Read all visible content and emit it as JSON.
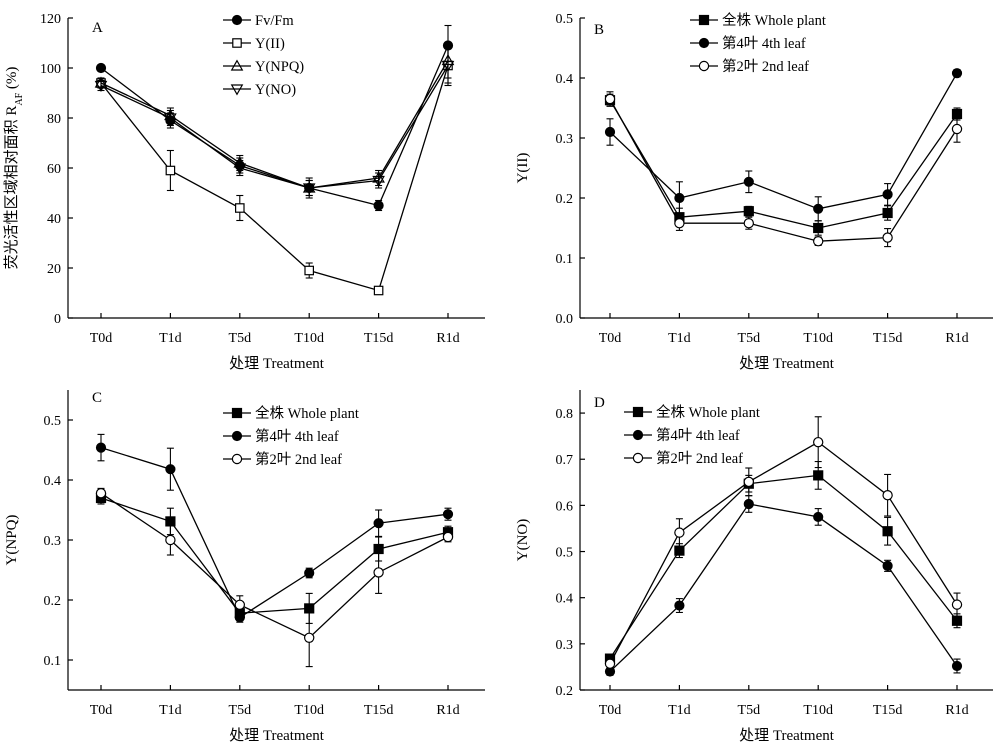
{
  "chart_data": [
    {
      "panel": "A",
      "type": "line",
      "ylabel_main": "荧光活性区域相对面积 R",
      "ylabel_sub": "AF",
      "ylabel_suffix": " (%)",
      "xlabel": "处理 Treatment",
      "categories": [
        "T0d",
        "T1d",
        "T5d",
        "T10d",
        "T15d",
        "R1d"
      ],
      "ylim": [
        0,
        120
      ],
      "yticks": [
        0,
        20,
        40,
        60,
        80,
        100,
        120
      ],
      "ytick_decimals": 0,
      "legend_position": "top-left",
      "series": [
        {
          "name": "Fv/Fm",
          "marker": "circle-filled",
          "values": [
            100,
            79,
            61,
            52,
            45,
            109
          ],
          "errors": [
            0,
            3,
            3,
            3,
            2,
            8
          ]
        },
        {
          "name": "Y(II)",
          "marker": "square-open",
          "values": [
            94,
            59,
            44,
            19,
            11,
            101
          ],
          "errors": [
            2,
            8,
            5,
            3,
            1,
            8
          ]
        },
        {
          "name": "Y(NPQ)",
          "marker": "triangle-up-open",
          "values": [
            94,
            81,
            62,
            52,
            56,
            103
          ],
          "errors": [
            2,
            3,
            3,
            4,
            3,
            7
          ]
        },
        {
          "name": "Y(NO)",
          "marker": "triangle-down-open",
          "values": [
            93,
            80,
            60,
            52,
            55,
            101
          ],
          "errors": [
            2,
            3,
            3,
            3,
            3,
            7
          ]
        }
      ]
    },
    {
      "panel": "B",
      "type": "line",
      "ylabel_main": "Y(II)",
      "xlabel": "处理 Treatment",
      "categories": [
        "T0d",
        "T1d",
        "T5d",
        "T10d",
        "T15d",
        "R1d"
      ],
      "ylim": [
        0,
        0.5
      ],
      "yticks": [
        0,
        0.1,
        0.2,
        0.3,
        0.4,
        0.5
      ],
      "ytick_decimals": 1,
      "legend_position": "top-center",
      "series": [
        {
          "name": "全株 Whole plant",
          "marker": "square-filled",
          "values": [
            0.363,
            0.168,
            0.178,
            0.15,
            0.175,
            0.34
          ],
          "errors": [
            0.01,
            0.015,
            0.008,
            0.012,
            0.012,
            0.01
          ]
        },
        {
          "name": "第4叶 4th leaf",
          "marker": "circle-filled",
          "values": [
            0.31,
            0.2,
            0.227,
            0.182,
            0.206,
            0.408
          ],
          "errors": [
            0.022,
            0.027,
            0.018,
            0.02,
            0.018,
            0.006
          ]
        },
        {
          "name": "第2叶 2nd leaf",
          "marker": "circle-open",
          "values": [
            0.365,
            0.158,
            0.158,
            0.128,
            0.134,
            0.315
          ],
          "errors": [
            0.012,
            0.012,
            0.01,
            0.007,
            0.015,
            0.022
          ]
        }
      ]
    },
    {
      "panel": "C",
      "type": "line",
      "ylabel_main": "Y(NPQ)",
      "xlabel": "处理 Treatment",
      "categories": [
        "T0d",
        "T1d",
        "T5d",
        "T10d",
        "T15d",
        "R1d"
      ],
      "ylim": [
        0.05,
        0.55
      ],
      "yticks": [
        0.1,
        0.2,
        0.3,
        0.4,
        0.5
      ],
      "ytick_decimals": 1,
      "legend_position": "top-center",
      "series": [
        {
          "name": "全株 Whole plant",
          "marker": "square-filled",
          "values": [
            0.37,
            0.331,
            0.178,
            0.186,
            0.285,
            0.313
          ],
          "errors": [
            0.01,
            0.022,
            0.008,
            0.025,
            0.02,
            0.01
          ]
        },
        {
          "name": "第4叶 4th leaf",
          "marker": "circle-filled",
          "values": [
            0.454,
            0.418,
            0.171,
            0.245,
            0.328,
            0.343
          ],
          "errors": [
            0.022,
            0.035,
            0.008,
            0.008,
            0.022,
            0.01
          ]
        },
        {
          "name": "第2叶 2nd leaf",
          "marker": "circle-open",
          "values": [
            0.378,
            0.3,
            0.192,
            0.137,
            0.246,
            0.305
          ],
          "errors": [
            0.008,
            0.025,
            0.015,
            0.048,
            0.035,
            0.008
          ]
        }
      ]
    },
    {
      "panel": "D",
      "type": "line",
      "ylabel_main": "Y(NO)",
      "xlabel": "处理 Treatment",
      "categories": [
        "T0d",
        "T1d",
        "T5d",
        "T10d",
        "T15d",
        "R1d"
      ],
      "ylim": [
        0.2,
        0.85
      ],
      "yticks": [
        0.2,
        0.3,
        0.4,
        0.5,
        0.6,
        0.7,
        0.8
      ],
      "ytick_decimals": 1,
      "legend_position": "top-center",
      "series": [
        {
          "name": "全株 Whole plant",
          "marker": "square-filled",
          "values": [
            0.268,
            0.502,
            0.647,
            0.665,
            0.544,
            0.35
          ],
          "errors": [
            0.008,
            0.015,
            0.018,
            0.03,
            0.03,
            0.015
          ]
        },
        {
          "name": "第4叶 4th leaf",
          "marker": "circle-filled",
          "values": [
            0.24,
            0.383,
            0.603,
            0.575,
            0.469,
            0.252
          ],
          "errors": [
            0.008,
            0.015,
            0.018,
            0.018,
            0.012,
            0.015
          ]
        },
        {
          "name": "第2叶 2nd leaf",
          "marker": "circle-open",
          "values": [
            0.257,
            0.541,
            0.651,
            0.737,
            0.622,
            0.385
          ],
          "errors": [
            0.008,
            0.03,
            0.03,
            0.055,
            0.045,
            0.025
          ]
        }
      ]
    }
  ]
}
